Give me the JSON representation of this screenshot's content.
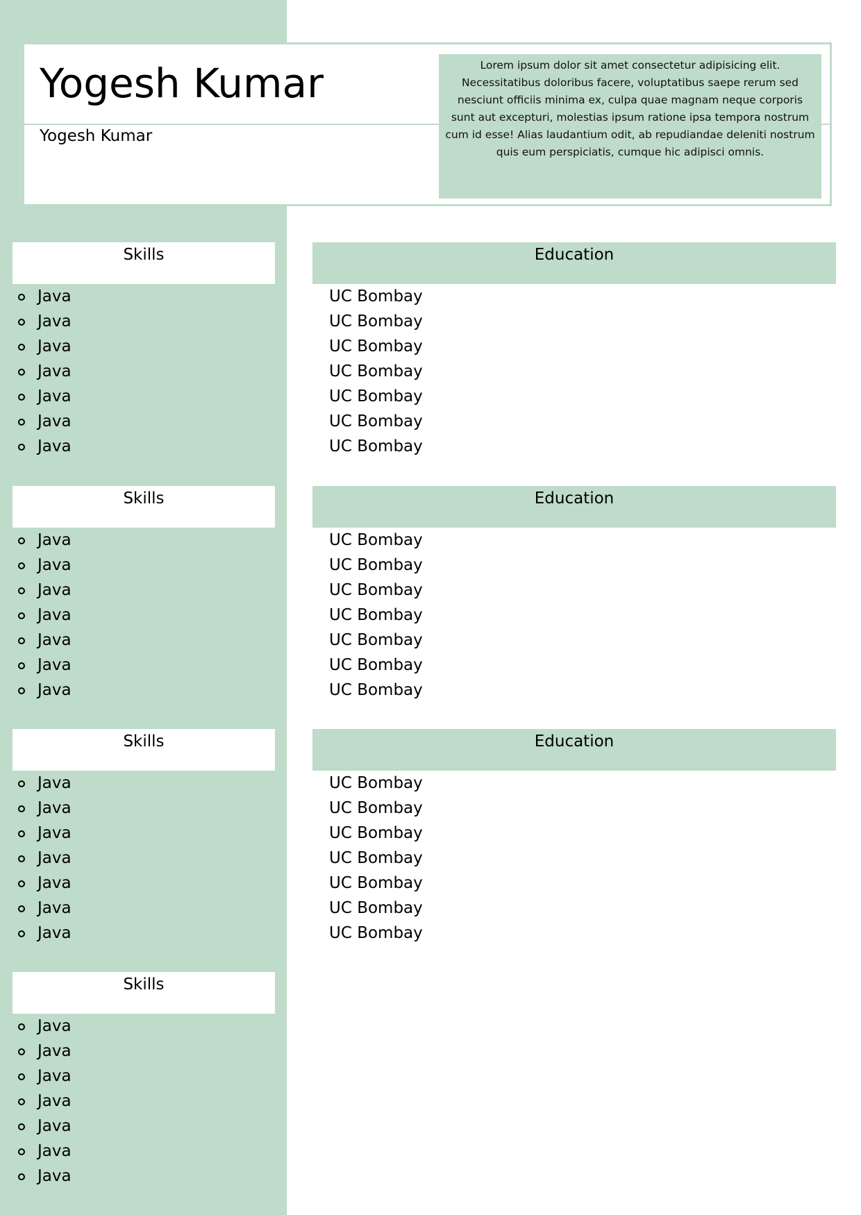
{
  "header": {
    "name_large": "Yogesh Kumar",
    "name_small": "Yogesh Kumar",
    "summary": "Lorem ipsum dolor sit amet consectetur adipisicing elit. Necessitatibus doloribus facere, voluptatibus saepe rerum sed nesciunt officiis minima ex, culpa quae magnam neque corporis sunt aut excepturi, molestias ipsum ratione ipsa tempora nostrum cum id esse! Alias laudantium odit, ab repudiandae deleniti nostrum quis eum perspiciatis, cumque hic adipisci omnis."
  },
  "skills_sections": [
    {
      "title": "Skills",
      "items": [
        "Java",
        "Java",
        "Java",
        "Java",
        "Java",
        "Java",
        "Java"
      ]
    },
    {
      "title": "Skills",
      "items": [
        "Java",
        "Java",
        "Java",
        "Java",
        "Java",
        "Java",
        "Java"
      ]
    },
    {
      "title": "Skills",
      "items": [
        "Java",
        "Java",
        "Java",
        "Java",
        "Java",
        "Java",
        "Java"
      ]
    },
    {
      "title": "Skills",
      "items": [
        "Java",
        "Java",
        "Java",
        "Java",
        "Java",
        "Java",
        "Java"
      ]
    }
  ],
  "education_sections": [
    {
      "title": "Education",
      "items": [
        "UC Bombay",
        "UC Bombay",
        "UC Bombay",
        "UC Bombay",
        "UC Bombay",
        "UC Bombay",
        "UC Bombay"
      ]
    },
    {
      "title": "Education",
      "items": [
        "UC Bombay",
        "UC Bombay",
        "UC Bombay",
        "UC Bombay",
        "UC Bombay",
        "UC Bombay",
        "UC Bombay"
      ]
    },
    {
      "title": "Education",
      "items": [
        "UC Bombay",
        "UC Bombay",
        "UC Bombay",
        "UC Bombay",
        "UC Bombay",
        "UC Bombay",
        "UC Bombay"
      ]
    }
  ],
  "colors": {
    "accent": "#bfdbc9",
    "background": "#ffffff",
    "text": "#000000"
  }
}
